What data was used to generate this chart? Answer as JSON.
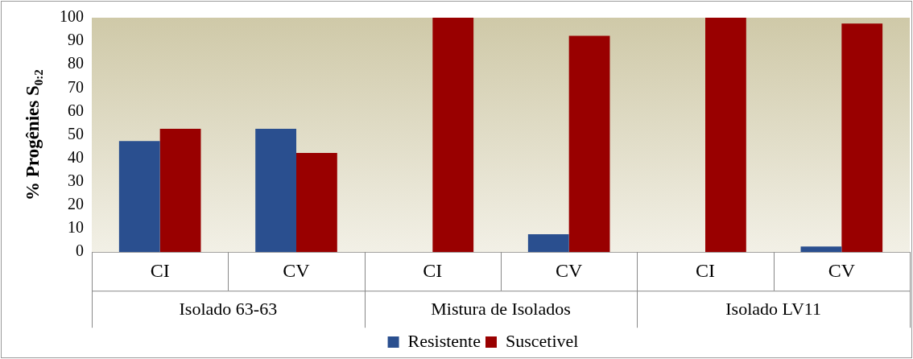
{
  "chart_data": {
    "type": "bar",
    "ylabel": "% Progênies S$_{0:2}$",
    "categories": [
      "CI",
      "CV",
      "CI",
      "CV",
      "CI",
      "CV"
    ],
    "series": [
      {
        "name": "Resistente",
        "color": "#2a4f8f",
        "values": [
          47.4,
          52.6,
          0,
          7.6,
          0,
          2.4
        ]
      },
      {
        "name": "Suscetivel",
        "color": "#990000",
        "values": [
          52.6,
          42.3,
          100,
          92.3,
          100,
          97.5
        ]
      }
    ],
    "annotations": [
      "Isolado 63-63",
      "Mistura de Isolados",
      "Isolado LV11"
    ],
    "ylim": [
      0,
      100
    ],
    "yticks": [
      0,
      10,
      20,
      30,
      40,
      50,
      60,
      70,
      80,
      90,
      100
    ],
    "grid": false,
    "legend": "bottom"
  }
}
